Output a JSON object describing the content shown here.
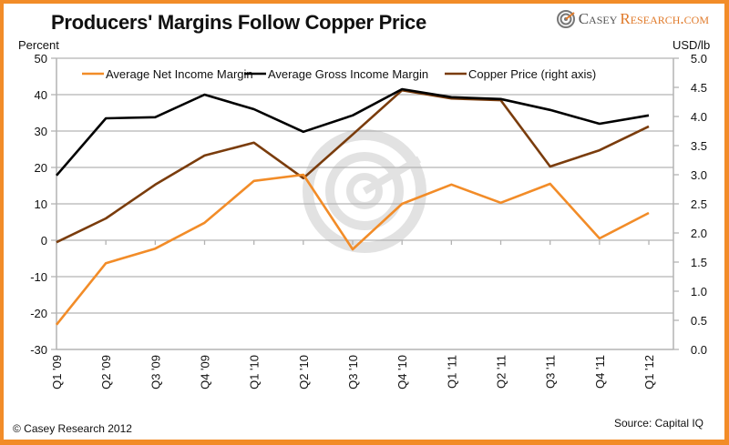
{
  "header": {
    "title": "Producers' Margins Follow Copper Price",
    "brand_main": "Casey",
    "brand_accent": "Research.com"
  },
  "footer": {
    "copyright": "© Casey Research 2012",
    "source": "Source: Capital IQ"
  },
  "colors": {
    "frame": "#f28c28",
    "net": "#f28c28",
    "gross": "#000000",
    "copper": "#7a3c0c",
    "grid": "#b3b3b3"
  },
  "chart_data": {
    "type": "line",
    "title": "Producers' Margins Follow Copper Price",
    "ylabel": "Percent",
    "y2label": "USD/lb",
    "ylim": [
      -30,
      50
    ],
    "y2lim": [
      0,
      5
    ],
    "yticks": [
      "50",
      "40",
      "30",
      "20",
      "10",
      "0",
      "-10",
      "-20",
      "-30"
    ],
    "y2ticks": [
      "5.0",
      "4.5",
      "4.0",
      "3.5",
      "3.0",
      "2.5",
      "2.0",
      "1.5",
      "1.0",
      "0.5",
      "0.0"
    ],
    "grid": true,
    "legend_position": "top",
    "categories": [
      "Q1 '09",
      "Q2 '09",
      "Q3 '09",
      "Q4 '09",
      "Q1 '10",
      "Q2 '10",
      "Q3 '10",
      "Q4 '10",
      "Q1 '11",
      "Q2 '11",
      "Q3 '11",
      "Q4 '11",
      "Q1 '12"
    ],
    "series": [
      {
        "name": "Average Net Income Margin",
        "axis": "left",
        "values": [
          -23.2,
          -6.3,
          -2.3,
          4.8,
          16.3,
          18.0,
          -2.5,
          10.0,
          15.3,
          10.3,
          15.5,
          0.5,
          7.5
        ]
      },
      {
        "name": "Average Gross Income Margin",
        "axis": "left",
        "values": [
          17.8,
          33.5,
          33.8,
          40.0,
          36.0,
          29.8,
          34.3,
          41.5,
          39.3,
          38.8,
          35.8,
          32.0,
          34.3
        ]
      },
      {
        "name": "Copper Price (right axis)",
        "axis": "right",
        "values": [
          1.84,
          2.25,
          2.83,
          3.33,
          3.55,
          2.94,
          3.69,
          4.45,
          4.31,
          4.28,
          3.14,
          3.42,
          3.83
        ]
      }
    ]
  }
}
